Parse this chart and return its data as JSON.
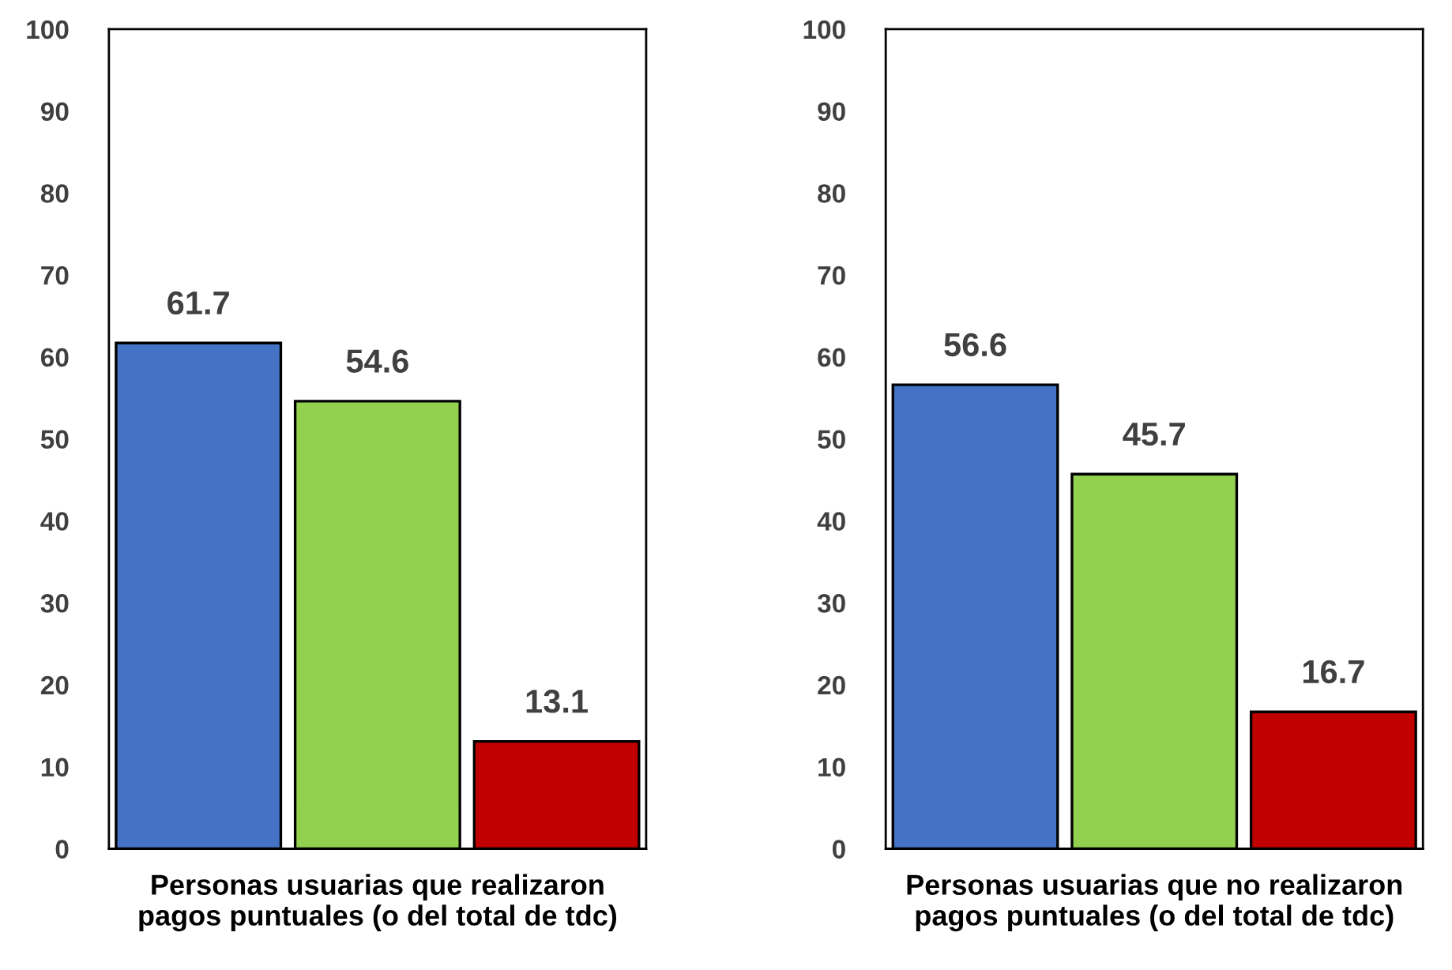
{
  "chart_data": [
    {
      "type": "bar",
      "xlabel": "Personas usuarias que realizaron\npagos puntuales (o del total de tdc)",
      "categories": [
        null,
        null,
        null
      ],
      "values": [
        61.7,
        54.6,
        13.1
      ],
      "colors": [
        "#4472c4",
        "#92d050",
        "#c00000"
      ],
      "ylim": [
        0,
        100
      ],
      "yticks": [
        0,
        10,
        20,
        30,
        40,
        50,
        60,
        70,
        80,
        90,
        100
      ],
      "grid": false,
      "data_labels": true
    },
    {
      "type": "bar",
      "xlabel": "Personas usuarias que no realizaron\npagos puntuales (o del total de tdc)",
      "categories": [
        null,
        null,
        null
      ],
      "values": [
        56.6,
        45.7,
        16.7
      ],
      "colors": [
        "#4472c4",
        "#92d050",
        "#c00000"
      ],
      "ylim": [
        0,
        100
      ],
      "yticks": [
        0,
        10,
        20,
        30,
        40,
        50,
        60,
        70,
        80,
        90,
        100
      ],
      "grid": false,
      "data_labels": true
    }
  ]
}
